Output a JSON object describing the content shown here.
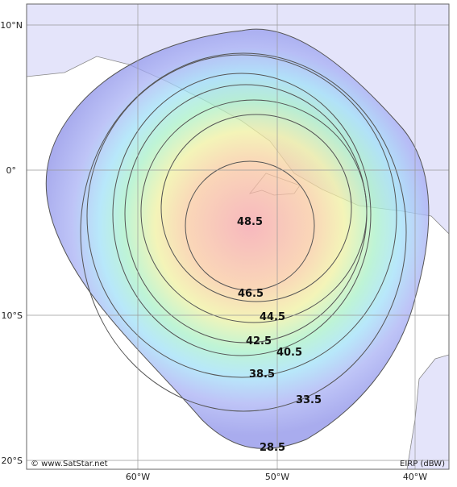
{
  "lat_labels": [
    "10°N",
    "0°",
    "10°S",
    "20°S"
  ],
  "lon_labels": [
    "60°W",
    "50°W",
    "40°W"
  ],
  "contours": [
    "48.5",
    "46.5",
    "44.5",
    "42.5",
    "40.5",
    "38.5",
    "33.5",
    "28.5"
  ],
  "credit": "© www.SatStar.net",
  "unit": "EIRP (dBW)"
}
